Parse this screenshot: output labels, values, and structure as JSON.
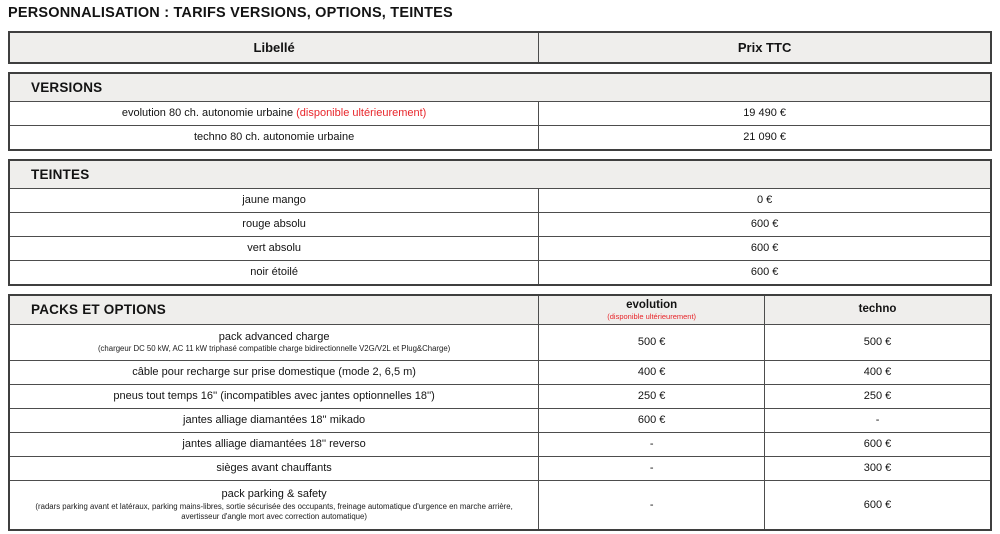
{
  "title": "PERSONNALISATION : TARIFS VERSIONS, OPTIONS, TEINTES",
  "colors": {
    "accent_red": "#e8262b",
    "header_bg": "#efeeec",
    "border_dark": "#3f3f3f"
  },
  "header_table": {
    "label_col": "Libellé",
    "price_col": "Prix TTC"
  },
  "versions": {
    "section_title": "VERSIONS",
    "rows": [
      {
        "label": "evolution 80 ch. autonomie urbaine",
        "label_note_red": "(disponible ultérieurement)",
        "price": "19 490 €"
      },
      {
        "label": "techno 80 ch. autonomie urbaine",
        "label_note_red": "",
        "price": "21 090 €"
      }
    ]
  },
  "teintes": {
    "section_title": "TEINTES",
    "rows": [
      {
        "label": "jaune mango",
        "price": "0 €"
      },
      {
        "label": "rouge absolu",
        "price": "600 €"
      },
      {
        "label": "vert absolu",
        "price": "600 €"
      },
      {
        "label": "noir étoilé",
        "price": "600 €"
      }
    ]
  },
  "packs": {
    "section_title": "PACKS ET OPTIONS",
    "col_evolution_label": "evolution",
    "col_evolution_note": "(disponible ultérieurement)",
    "col_techno_label": "techno",
    "rows": [
      {
        "label": "pack advanced charge",
        "sublabel": "(chargeur DC 50 kW, AC 11 kW triphasé compatible charge bidirectionnelle V2G/V2L et Plug&Charge)",
        "evolution": "500 €",
        "techno": "500 €"
      },
      {
        "label": "câble pour recharge sur prise domestique (mode 2, 6,5 m)",
        "sublabel": "",
        "evolution": "400 €",
        "techno": "400 €"
      },
      {
        "label": "pneus tout temps 16'' (incompatibles avec jantes optionnelles 18'')",
        "sublabel": "",
        "evolution": "250 €",
        "techno": "250 €"
      },
      {
        "label": "jantes alliage diamantées 18'' mikado",
        "sublabel": "",
        "evolution": "600 €",
        "techno": "-"
      },
      {
        "label": "jantes alliage diamantées 18'' reverso",
        "sublabel": "",
        "evolution": "-",
        "techno": "600 €"
      },
      {
        "label": "sièges avant chauffants",
        "sublabel": "",
        "evolution": "-",
        "techno": "300 €"
      },
      {
        "label": "pack parking & safety",
        "sublabel": "(radars parking avant et latéraux, parking mains-libres, sortie sécurisée des occupants, freinage automatique d'urgence en marche arrière, avertisseur d'angle mort avec correction automatique)",
        "evolution": "-",
        "techno": "600 €"
      }
    ]
  }
}
